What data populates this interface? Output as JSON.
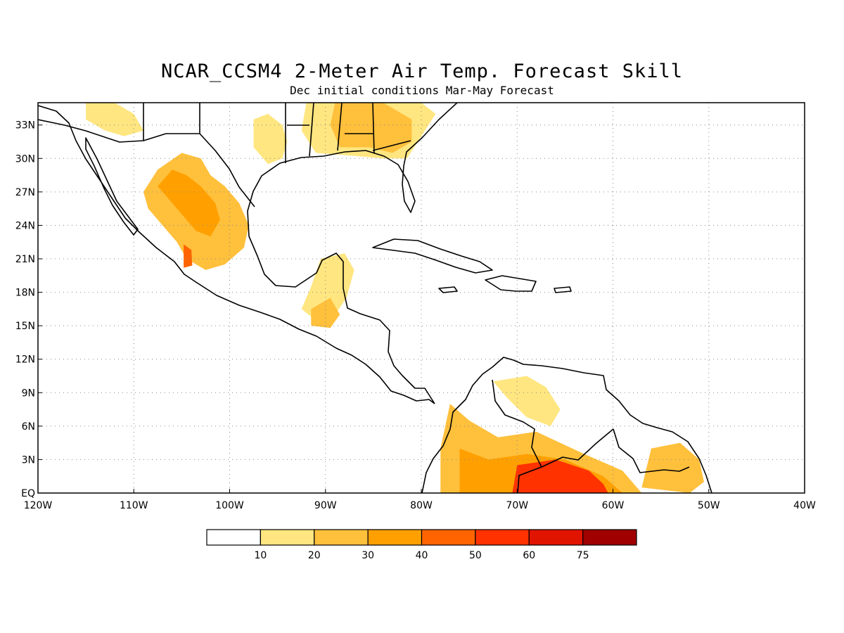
{
  "title": "NCAR_CCSM4 2-Meter Air Temp. Forecast Skill",
  "subtitle": "Dec initial conditions  Mar-May Forecast",
  "map": {
    "lon_range": [
      -120,
      -40
    ],
    "lat_range": [
      0,
      35
    ],
    "lon_ticks": [
      {
        "value": -120,
        "label": "120W"
      },
      {
        "value": -110,
        "label": "110W"
      },
      {
        "value": -100,
        "label": "100W"
      },
      {
        "value": -90,
        "label": "90W"
      },
      {
        "value": -80,
        "label": "80W"
      },
      {
        "value": -70,
        "label": "70W"
      },
      {
        "value": -60,
        "label": "60W"
      },
      {
        "value": -50,
        "label": "50W"
      },
      {
        "value": -40,
        "label": "40W"
      }
    ],
    "lat_ticks": [
      {
        "value": 0,
        "label": "EQ"
      },
      {
        "value": 3,
        "label": "3N"
      },
      {
        "value": 6,
        "label": "6N"
      },
      {
        "value": 9,
        "label": "9N"
      },
      {
        "value": 12,
        "label": "12N"
      },
      {
        "value": 15,
        "label": "15N"
      },
      {
        "value": 18,
        "label": "18N"
      },
      {
        "value": 21,
        "label": "21N"
      },
      {
        "value": 24,
        "label": "24N"
      },
      {
        "value": 27,
        "label": "27N"
      },
      {
        "value": 30,
        "label": "30N"
      },
      {
        "value": 33,
        "label": "33N"
      }
    ],
    "gridlines": true,
    "coastline_color": "#000000",
    "shading": [
      {
        "name": "mexico-plateau",
        "level": 20,
        "points": [
          [
            -109,
            27
          ],
          [
            -107.5,
            29
          ],
          [
            -105,
            30.5
          ],
          [
            -103,
            30
          ],
          [
            -102,
            28.5
          ],
          [
            -100.5,
            27.5
          ],
          [
            -99,
            26
          ],
          [
            -98,
            24
          ],
          [
            -98.5,
            22
          ],
          [
            -100.5,
            20.5
          ],
          [
            -102.5,
            20
          ],
          [
            -104.5,
            21
          ],
          [
            -105.5,
            22.5
          ],
          [
            -107,
            24
          ],
          [
            -108.5,
            25.5
          ]
        ]
      },
      {
        "name": "mexico-plateau-core",
        "level": 30,
        "points": [
          [
            -107.5,
            27.5
          ],
          [
            -106,
            29
          ],
          [
            -104.5,
            28.5
          ],
          [
            -103,
            27.5
          ],
          [
            -101.5,
            26
          ],
          [
            -101,
            24.5
          ],
          [
            -102,
            23
          ],
          [
            -103.5,
            23.5
          ],
          [
            -105,
            25
          ]
        ]
      },
      {
        "name": "mexico-west-hotspot",
        "level": 40,
        "points": [
          [
            -104.8,
            22.3
          ],
          [
            -104,
            21.8
          ],
          [
            -103.9,
            20.4
          ],
          [
            -104.8,
            20.2
          ]
        ]
      },
      {
        "name": "texas-plains",
        "level": 10,
        "points": [
          [
            -97.5,
            33.5
          ],
          [
            -96,
            34
          ],
          [
            -94.5,
            33
          ],
          [
            -94,
            31.5
          ],
          [
            -94.5,
            30
          ],
          [
            -96,
            29.5
          ],
          [
            -97.5,
            31
          ]
        ]
      },
      {
        "name": "texas-west",
        "level": 10,
        "points": [
          [
            -115,
            35
          ],
          [
            -112,
            35
          ],
          [
            -110,
            34
          ],
          [
            -109,
            32.5
          ],
          [
            -111,
            32
          ],
          [
            -113,
            32.5
          ],
          [
            -115,
            33.5
          ]
        ]
      },
      {
        "name": "southeast-us",
        "level": 20,
        "points": [
          [
            -89,
            35
          ],
          [
            -84,
            35
          ],
          [
            -81,
            33.5
          ],
          [
            -81,
            31.5
          ],
          [
            -83,
            30.5
          ],
          [
            -85.5,
            31
          ],
          [
            -88.5,
            31
          ],
          [
            -89.5,
            33
          ]
        ]
      },
      {
        "name": "southeast-us-outer",
        "level": 10,
        "points": [
          [
            -92,
            35
          ],
          [
            -80,
            35
          ],
          [
            -78.5,
            34
          ],
          [
            -80,
            32
          ],
          [
            -81.5,
            30
          ],
          [
            -84,
            30
          ],
          [
            -88,
            30.3
          ],
          [
            -91,
            30.5
          ],
          [
            -92.5,
            32.5
          ]
        ]
      },
      {
        "name": "yucatan",
        "level": 10,
        "points": [
          [
            -90.5,
            21
          ],
          [
            -88,
            21.5
          ],
          [
            -87,
            20
          ],
          [
            -87.8,
            17.5
          ],
          [
            -89,
            16
          ],
          [
            -91,
            15.5
          ],
          [
            -92.5,
            16.5
          ],
          [
            -91.5,
            18.5
          ]
        ]
      },
      {
        "name": "central-america",
        "level": 20,
        "points": [
          [
            -91.5,
            16.5
          ],
          [
            -89.5,
            17.5
          ],
          [
            -88.5,
            16
          ],
          [
            -89.5,
            14.8
          ],
          [
            -91.5,
            15
          ]
        ]
      },
      {
        "name": "amazon",
        "level": 20,
        "points": [
          [
            -77,
            8
          ],
          [
            -75,
            6.5
          ],
          [
            -72,
            5
          ],
          [
            -68,
            5.5
          ],
          [
            -63,
            3.5
          ],
          [
            -59,
            2
          ],
          [
            -57,
            0
          ],
          [
            -78,
            0
          ],
          [
            -78,
            4
          ]
        ]
      },
      {
        "name": "amazon-core",
        "level": 30,
        "points": [
          [
            -76,
            4
          ],
          [
            -73,
            3
          ],
          [
            -69,
            3.5
          ],
          [
            -65,
            3
          ],
          [
            -61,
            1.5
          ],
          [
            -59,
            0
          ],
          [
            -76,
            0
          ]
        ]
      },
      {
        "name": "amazon-hotspot",
        "level": 50,
        "points": [
          [
            -70,
            2.5
          ],
          [
            -66,
            3
          ],
          [
            -62.5,
            2
          ],
          [
            -61,
            0.8
          ],
          [
            -60.5,
            0
          ],
          [
            -70.5,
            0
          ]
        ]
      },
      {
        "name": "venezuela",
        "level": 10,
        "points": [
          [
            -72.5,
            10
          ],
          [
            -69,
            10.5
          ],
          [
            -67,
            9.5
          ],
          [
            -65.5,
            7.5
          ],
          [
            -66.5,
            6
          ],
          [
            -69,
            6.8
          ],
          [
            -71,
            8.5
          ]
        ]
      },
      {
        "name": "guianas",
        "level": 20,
        "points": [
          [
            -56,
            4
          ],
          [
            -53,
            4.5
          ],
          [
            -51,
            3
          ],
          [
            -50.5,
            1
          ],
          [
            -52,
            0
          ],
          [
            -57,
            0.5
          ]
        ]
      }
    ]
  },
  "colorbar": {
    "levels": [
      "10",
      "20",
      "30",
      "40",
      "50",
      "60",
      "75"
    ],
    "colors": [
      "#ffffff",
      "#ffe680",
      "#ffc03c",
      "#ffa000",
      "#ff6400",
      "#ff3200",
      "#e11400",
      "#a00000"
    ]
  }
}
